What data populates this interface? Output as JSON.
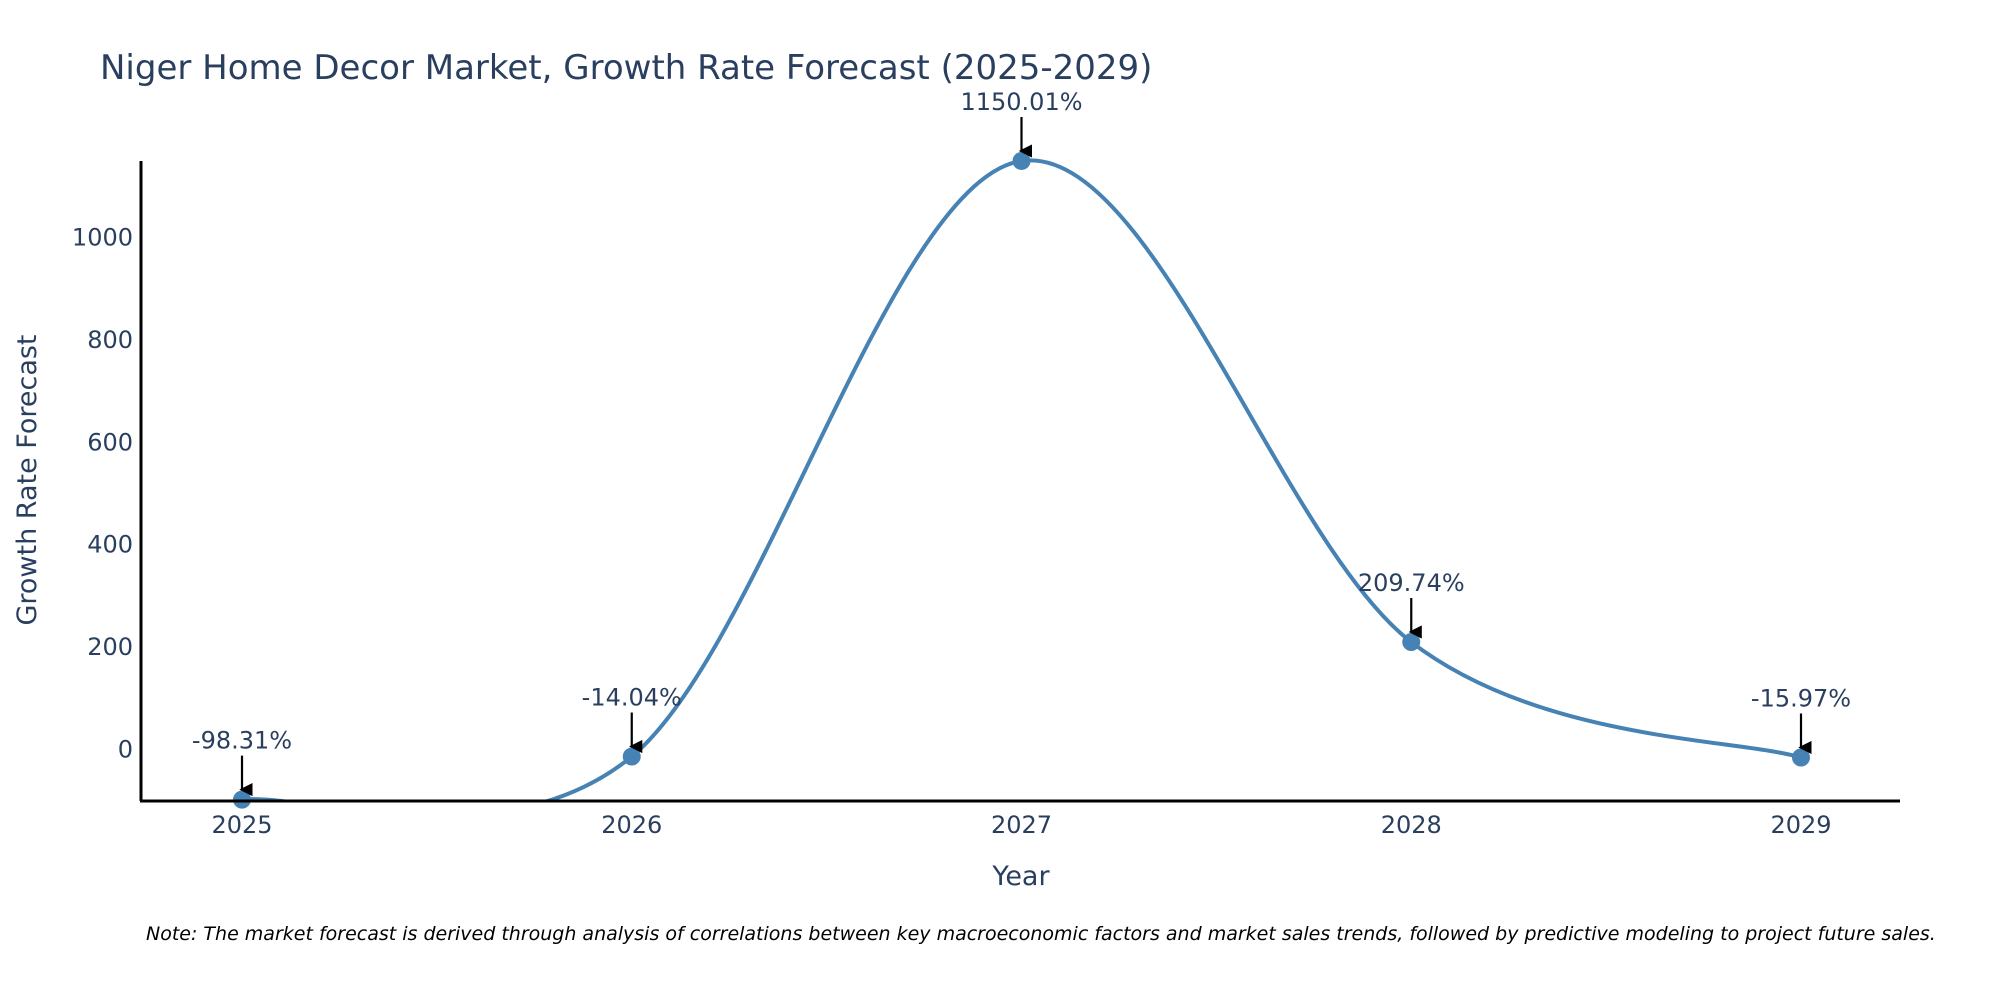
{
  "chart_data": {
    "type": "line",
    "title": "Niger Home Decor Market, Growth Rate Forecast (2025-2029)",
    "xlabel": "Year",
    "ylabel": "Growth Rate Forecast",
    "categories": [
      "2025",
      "2026",
      "2027",
      "2028",
      "2029"
    ],
    "series": [
      {
        "name": "Growth Rate Forecast",
        "values": [
          -98.31,
          -14.04,
          1150.01,
          209.74,
          -15.97
        ],
        "labels": [
          "-98.31%",
          "-14.04%",
          "1150.01%",
          "209.74%",
          "-15.97%"
        ]
      }
    ],
    "yticks": [
      0,
      200,
      400,
      600,
      800,
      1000
    ],
    "ytick_labels": [
      "0",
      "200",
      "400",
      "600",
      "800",
      "1000"
    ],
    "ylim": [
      -101,
      1150
    ],
    "grid": false,
    "note": "Note: The market forecast is derived through analysis of correlations between key macroeconomic factors and market sales trends, followed by predictive modeling to project future sales.",
    "colors": {
      "line": "#4682b4",
      "text": "#2a3f5f",
      "axis": "#000000",
      "arrow": "#000000"
    }
  }
}
